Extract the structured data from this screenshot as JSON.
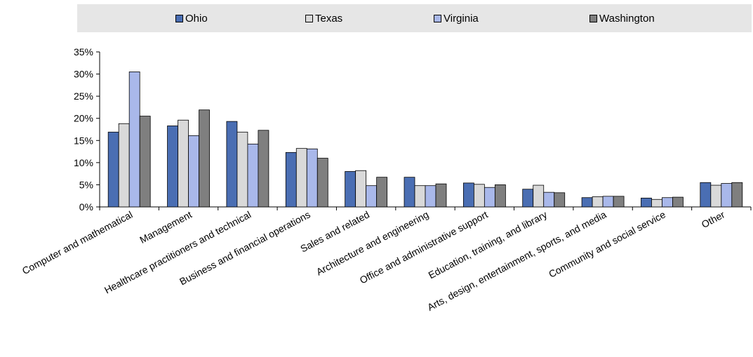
{
  "chart_data": {
    "type": "bar",
    "title": "",
    "xlabel": "",
    "ylabel": "",
    "ylim": [
      0,
      0.35
    ],
    "yticks": [
      "0%",
      "5%",
      "10%",
      "15%",
      "20%",
      "25%",
      "30%",
      "35%"
    ],
    "grid": false,
    "legend_position": "top",
    "categories": [
      "Computer and mathematical",
      "Management",
      "Healthcare practitioners and technical",
      "Business and financial operations",
      "Sales and related",
      "Architecture and engineering",
      "Office and administrative support",
      "Education, training, and library",
      "Arts, design, entertainment, sports, and media",
      "Community and social service",
      "Other"
    ],
    "series": [
      {
        "name": "Ohio",
        "color": "#4a6eb3",
        "values": [
          0.169,
          0.183,
          0.193,
          0.123,
          0.08,
          0.067,
          0.054,
          0.04,
          0.021,
          0.02,
          0.055
        ]
      },
      {
        "name": "Texas",
        "color": "#d9d9d9",
        "values": [
          0.188,
          0.196,
          0.169,
          0.132,
          0.082,
          0.048,
          0.051,
          0.049,
          0.023,
          0.017,
          0.049
        ]
      },
      {
        "name": "Virginia",
        "color": "#a9b8ea",
        "values": [
          0.305,
          0.161,
          0.142,
          0.131,
          0.048,
          0.048,
          0.044,
          0.033,
          0.024,
          0.021,
          0.053
        ]
      },
      {
        "name": "Washington",
        "color": "#7f7f7f",
        "values": [
          0.205,
          0.219,
          0.173,
          0.11,
          0.067,
          0.052,
          0.05,
          0.032,
          0.024,
          0.022,
          0.055
        ]
      }
    ]
  }
}
